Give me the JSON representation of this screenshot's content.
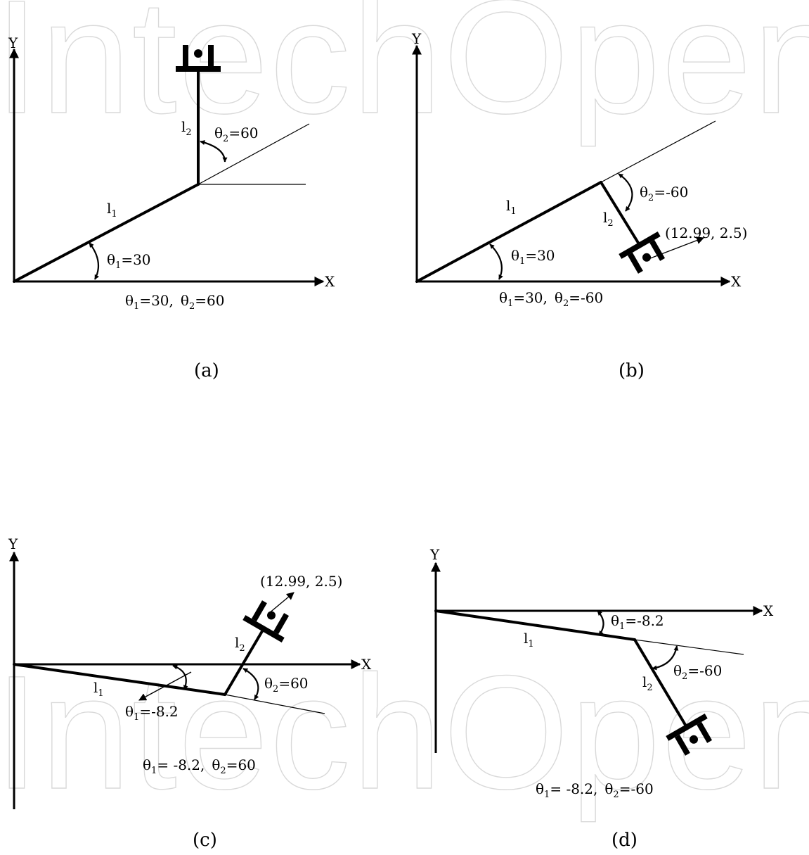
{
  "watermark": "IntechOpen",
  "panels": {
    "a": {
      "caption": "(a)",
      "x_axis": "X",
      "y_axis": "Y",
      "link1": {
        "base": "l",
        "sub": "1"
      },
      "link2": {
        "base": "l",
        "sub": "2"
      },
      "theta1": {
        "base": "θ",
        "sub": "1",
        "value": "=30"
      },
      "theta2": {
        "base": "θ",
        "sub": "2",
        "value": "=60"
      },
      "summary": {
        "t1_base": "θ",
        "t1_sub": "1",
        "t1_val": "=30,",
        "t2_base": "θ",
        "t2_sub": "2",
        "t2_val": "=60"
      }
    },
    "b": {
      "caption": "(b)",
      "x_axis": "X",
      "y_axis": "Y",
      "link1": {
        "base": "l",
        "sub": "1"
      },
      "link2": {
        "base": "l",
        "sub": "2"
      },
      "theta1": {
        "base": "θ",
        "sub": "1",
        "value": "=30"
      },
      "theta2": {
        "base": "θ",
        "sub": "2",
        "value": "=-60"
      },
      "point": "(12.99, 2.5)",
      "summary": {
        "t1_base": "θ",
        "t1_sub": "1",
        "t1_val": "=30,",
        "t2_base": "θ",
        "t2_sub": "2",
        "t2_val": "=-60"
      }
    },
    "c": {
      "caption": "(c)",
      "x_axis": "X",
      "y_axis": "Y",
      "link1": {
        "base": "l",
        "sub": "1"
      },
      "link2": {
        "base": "l",
        "sub": "2"
      },
      "theta1": {
        "base": "θ",
        "sub": "1",
        "value": "=-8.2"
      },
      "theta2": {
        "base": "θ",
        "sub": "2",
        "value": "=60"
      },
      "point": "(12.99, 2.5)",
      "summary": {
        "t1_base": "θ",
        "t1_sub": "1",
        "t1_val": "= -8.2,",
        "t2_base": "θ",
        "t2_sub": "2",
        "t2_val": "=60"
      }
    },
    "d": {
      "caption": "(d)",
      "x_axis": "X",
      "y_axis": "Y",
      "link1": {
        "base": "l",
        "sub": "1"
      },
      "link2": {
        "base": "l",
        "sub": "2"
      },
      "theta1": {
        "base": "θ",
        "sub": "1",
        "value": "=-8.2"
      },
      "theta2": {
        "base": "θ",
        "sub": "2",
        "value": "=-60"
      },
      "summary": {
        "t1_base": "θ",
        "t1_sub": "1",
        "t1_val": "= -8.2,",
        "t2_base": "θ",
        "t2_sub": "2",
        "t2_val": "=-60"
      }
    }
  }
}
